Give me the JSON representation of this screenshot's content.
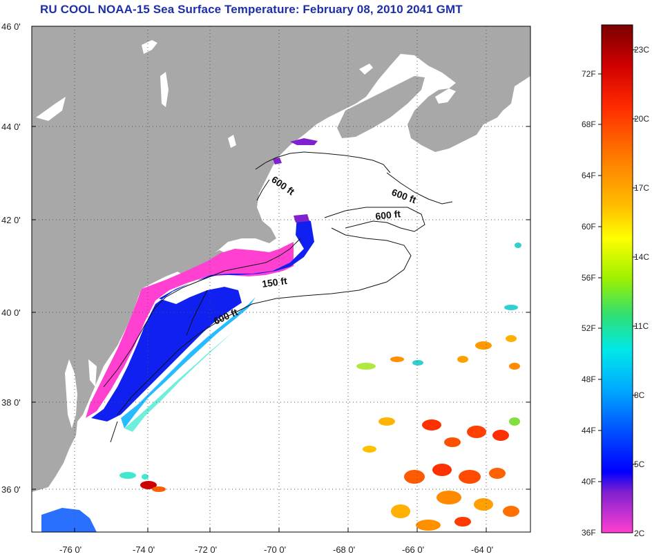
{
  "title": "RU COOL  NOAA-15  Sea Surface Temperature:  February 08, 2010 2041 GMT",
  "axes": {
    "lat_ticks": [
      "46 0'",
      "44 0'",
      "42 0'",
      "40 0'",
      "38 0'",
      "36 0'"
    ],
    "lon_ticks": [
      "-76 0'",
      "-74 0'",
      "-72 0'",
      "-70 0'",
      "-68 0'",
      "-66 0'",
      "-64 0'"
    ]
  },
  "contour_labels": [
    "600 ft",
    "600 ft",
    "600 ft",
    "150 ft",
    "600 ft"
  ],
  "colorbar": {
    "fahrenheit": [
      "72F",
      "68F",
      "64F",
      "60F",
      "56F",
      "52F",
      "48F",
      "44F",
      "40F",
      "36F"
    ],
    "celsius": [
      "23C",
      "20C",
      "17C",
      "14C",
      "11C",
      "8C",
      "5C",
      "2C"
    ]
  },
  "colors": {
    "land": "#a8a8a8",
    "title": "#1d2fa8",
    "cloud_ocean": "#ffffff"
  }
}
